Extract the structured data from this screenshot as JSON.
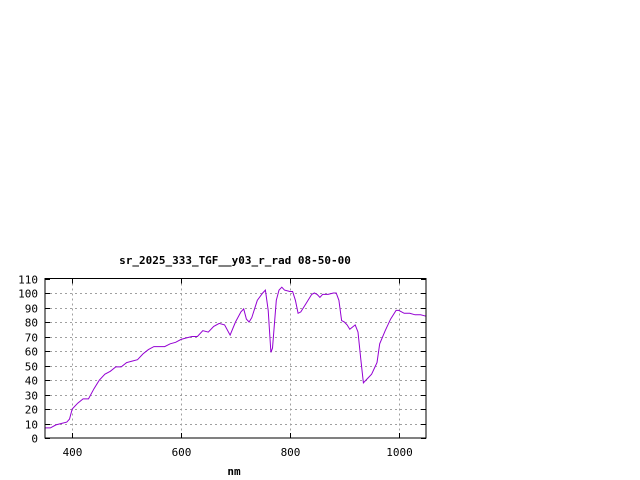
{
  "chart_data": {
    "type": "line",
    "title": "sr_2025_333_TGF__y03_r_rad 08-50-00",
    "xlabel": "nm",
    "ylabel": "",
    "xlim": [
      350,
      1050
    ],
    "ylim": [
      0,
      110
    ],
    "xticks": [
      400,
      600,
      800,
      1000
    ],
    "yticks": [
      0,
      10,
      20,
      30,
      40,
      50,
      60,
      70,
      80,
      90,
      100,
      110
    ],
    "grid": true,
    "line_color": "#9400d3",
    "series": [
      {
        "x": [
          350,
          360,
          370,
          380,
          390,
          395,
          400,
          410,
          420,
          430,
          440,
          450,
          460,
          470,
          480,
          490,
          500,
          510,
          520,
          530,
          540,
          550,
          560,
          570,
          580,
          590,
          600,
          610,
          620,
          630,
          640,
          650,
          660,
          670,
          680,
          690,
          700,
          710,
          715,
          720,
          725,
          730,
          740,
          750,
          755,
          760,
          765,
          768,
          775,
          780,
          785,
          790,
          800,
          805,
          810,
          815,
          820,
          830,
          840,
          845,
          850,
          855,
          860,
          870,
          880,
          885,
          890,
          895,
          900,
          905,
          910,
          920,
          925,
          930,
          935,
          940,
          950,
          960,
          965,
          975,
          985,
          995,
          1000,
          1010,
          1020,
          1030,
          1040,
          1050
        ],
        "y": [
          7,
          7,
          9,
          10,
          11,
          13,
          20,
          24,
          27,
          27,
          34,
          40,
          44,
          46,
          49,
          49,
          52,
          53,
          54,
          58,
          61,
          63,
          63,
          63,
          65,
          66,
          68,
          69,
          70,
          70,
          74,
          73,
          77,
          79,
          78,
          71,
          80,
          87,
          89,
          82,
          80,
          83,
          95,
          100,
          102,
          88,
          59,
          62,
          95,
          102,
          104,
          102,
          101,
          101,
          95,
          86,
          87,
          93,
          99,
          100,
          99,
          97,
          99,
          99,
          100,
          100,
          95,
          81,
          80,
          78,
          75,
          78,
          73,
          55,
          38,
          40,
          44,
          52,
          65,
          74,
          82,
          88,
          88,
          86,
          86,
          85,
          85,
          84
        ]
      }
    ]
  }
}
